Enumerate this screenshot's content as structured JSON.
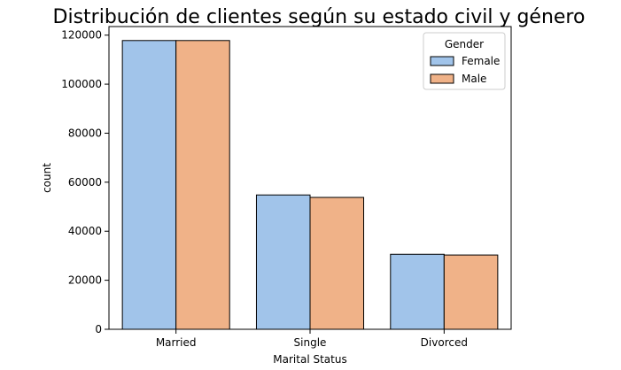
{
  "chart_data": {
    "type": "bar",
    "title": "Distribución de clientes según su estado civil y género",
    "xlabel": "Marital Status",
    "ylabel": "count",
    "categories": [
      "Married",
      "Single",
      "Divorced"
    ],
    "series": [
      {
        "name": "Female",
        "values": [
          117800,
          54800,
          30600
        ],
        "color": "#a1c4ea"
      },
      {
        "name": "Male",
        "values": [
          117800,
          53800,
          30300
        ],
        "color": "#f0b288"
      }
    ],
    "ylim": [
      0,
      123500
    ],
    "yticks": [
      0,
      20000,
      40000,
      60000,
      80000,
      100000,
      120000
    ],
    "legend": {
      "title": "Gender",
      "position": "top-right"
    },
    "grid": false
  }
}
